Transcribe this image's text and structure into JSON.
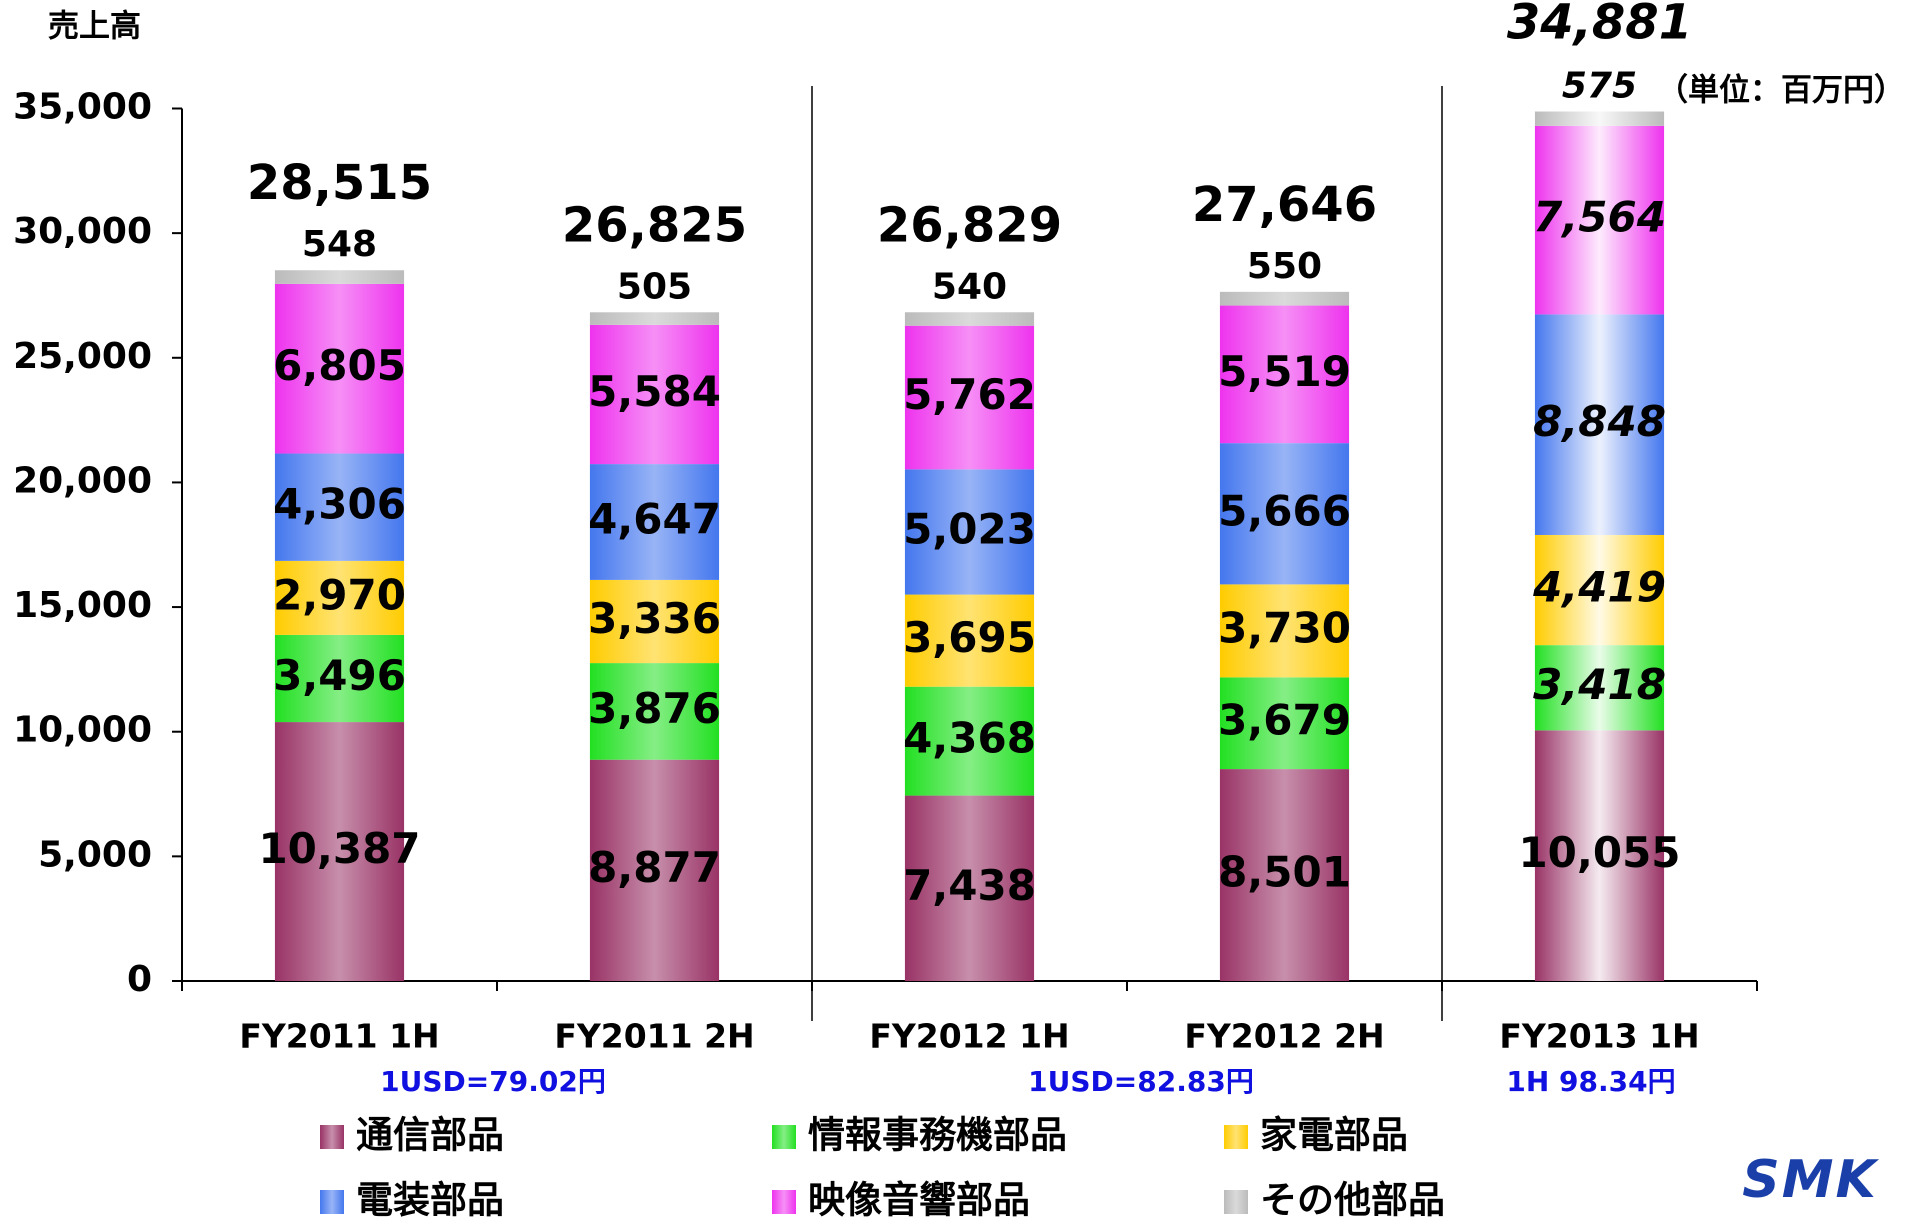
{
  "chart_data": {
    "type": "stacked_bar",
    "y_axis_label": "売上高",
    "unit_note": "（単位：百万円）",
    "categories": [
      "FY2011 1H",
      "FY2011 2H",
      "FY2012 1H",
      "FY2012 2H",
      "FY2013 1H"
    ],
    "series": [
      {
        "name": "通信部品",
        "color": "#993366",
        "values": [
          10387,
          8877,
          7438,
          8501,
          10055
        ],
        "value_labels": [
          "10,387",
          "8,877",
          "7,438",
          "8,501",
          "10,055"
        ]
      },
      {
        "name": "情報事務機部品",
        "color": "#22e022",
        "values": [
          3496,
          3876,
          4368,
          3679,
          3418
        ],
        "value_labels": [
          "3,496",
          "3,876",
          "4,368",
          "3,679",
          "3,418"
        ]
      },
      {
        "name": "家電部品",
        "color": "#ffcc00",
        "values": [
          2970,
          3336,
          3695,
          3730,
          4419
        ],
        "value_labels": [
          "2,970",
          "3,336",
          "3,695",
          "3,730",
          "4,419"
        ]
      },
      {
        "name": "電装部品",
        "color": "#4477ee",
        "values": [
          4306,
          4647,
          5023,
          5666,
          8848
        ],
        "value_labels": [
          "4,306",
          "4,647",
          "5,023",
          "5,666",
          "8,848"
        ]
      },
      {
        "name": "映像音響部品",
        "color": "#ee33ee",
        "values": [
          6805,
          5584,
          5762,
          5519,
          7564
        ],
        "value_labels": [
          "6,805",
          "5,584",
          "5,762",
          "5,519",
          "7,564"
        ]
      },
      {
        "name": "その他部品",
        "color": "#bbbbbb",
        "values": [
          548,
          505,
          540,
          550,
          575
        ],
        "value_labels": [
          "548",
          "505",
          "540",
          "550",
          "575"
        ]
      }
    ],
    "totals": [
      28515,
      26825,
      26829,
      27646,
      34881
    ],
    "total_labels": [
      "28,515",
      "26,825",
      "26,829",
      "27,646",
      "34,881"
    ],
    "exchange_rates": [
      "1USD=79.02円",
      "1USD=82.83円",
      "1H  98.34円"
    ],
    "logo": "SMK",
    "ylim": [
      0,
      35000
    ],
    "yticks": [
      0,
      {
        "value": 5000,
        "label": "5,000"
      },
      {
        "value": 10000,
        "label": "10,000"
      },
      {
        "value": 15000,
        "label": "15,000"
      },
      {
        "value": 20000,
        "label": "20,000"
      },
      {
        "value": 25000,
        "label": "25,000"
      },
      {
        "value": 30000,
        "label": "30,000"
      },
      {
        "value": 35000,
        "label": "35,000"
      }
    ],
    "legend": "bottom"
  }
}
